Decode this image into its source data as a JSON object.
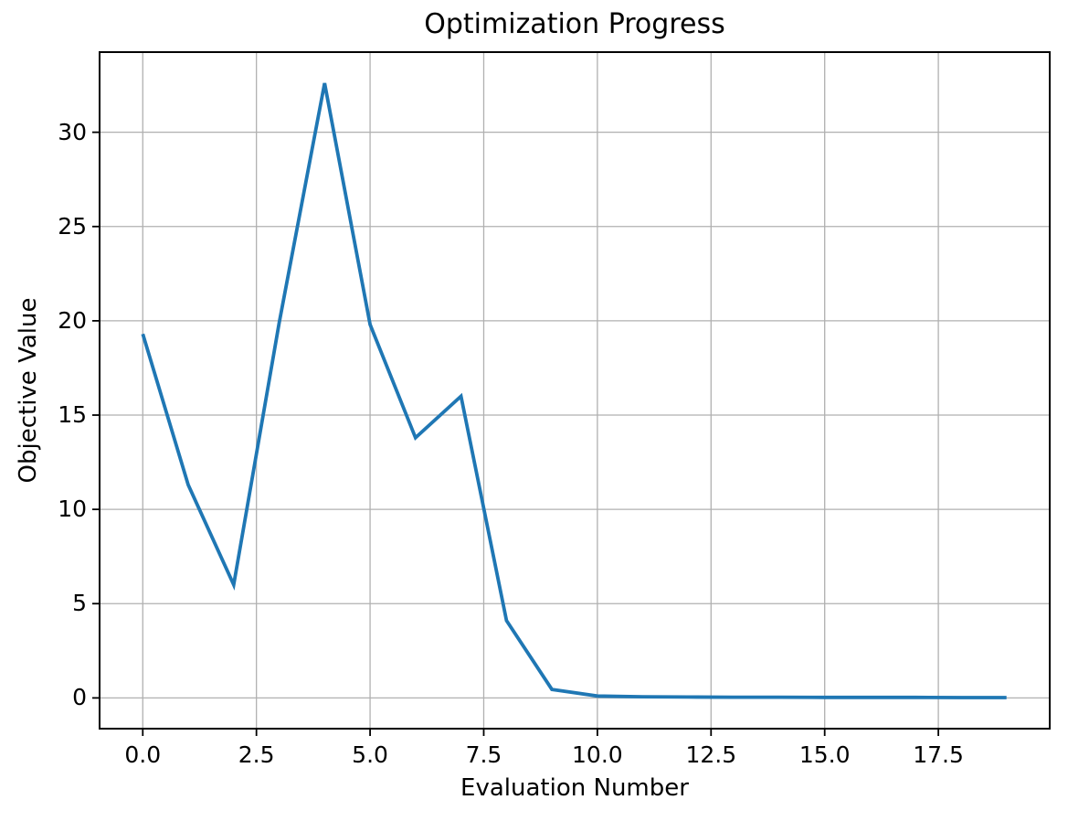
{
  "chart_data": {
    "type": "line",
    "title": "Optimization Progress",
    "xlabel": "Evaluation Number",
    "ylabel": "Objective Value",
    "x": [
      0,
      1,
      2,
      3,
      4,
      5,
      6,
      7,
      8,
      9,
      10,
      11,
      12,
      13,
      14,
      15,
      16,
      17,
      18,
      19
    ],
    "series": [
      {
        "name": "objective-value",
        "values": [
          19.3,
          11.3,
          6.0,
          19.9,
          32.6,
          19.8,
          13.8,
          16.0,
          4.1,
          0.45,
          0.1,
          0.06,
          0.05,
          0.04,
          0.04,
          0.03,
          0.03,
          0.03,
          0.02,
          0.02
        ]
      }
    ],
    "xlim": [
      -0.95,
      19.95
    ],
    "ylim": [
      -1.63,
      34.25
    ],
    "x_ticks": [
      0,
      2.5,
      5,
      7.5,
      10,
      12.5,
      15,
      17.5
    ],
    "x_tick_labels": [
      "0.0",
      "2.5",
      "5.0",
      "7.5",
      "10.0",
      "12.5",
      "15.0",
      "17.5"
    ],
    "y_ticks": [
      0,
      5,
      10,
      15,
      20,
      25,
      30
    ],
    "y_tick_labels": [
      "0",
      "5",
      "10",
      "15",
      "20",
      "25",
      "30"
    ],
    "grid": true,
    "legend_position": "none",
    "colors": {
      "line": "#1f77b4",
      "grid": "#b0b0b0",
      "spine": "#000000",
      "text": "#000000",
      "background": "#ffffff"
    }
  }
}
